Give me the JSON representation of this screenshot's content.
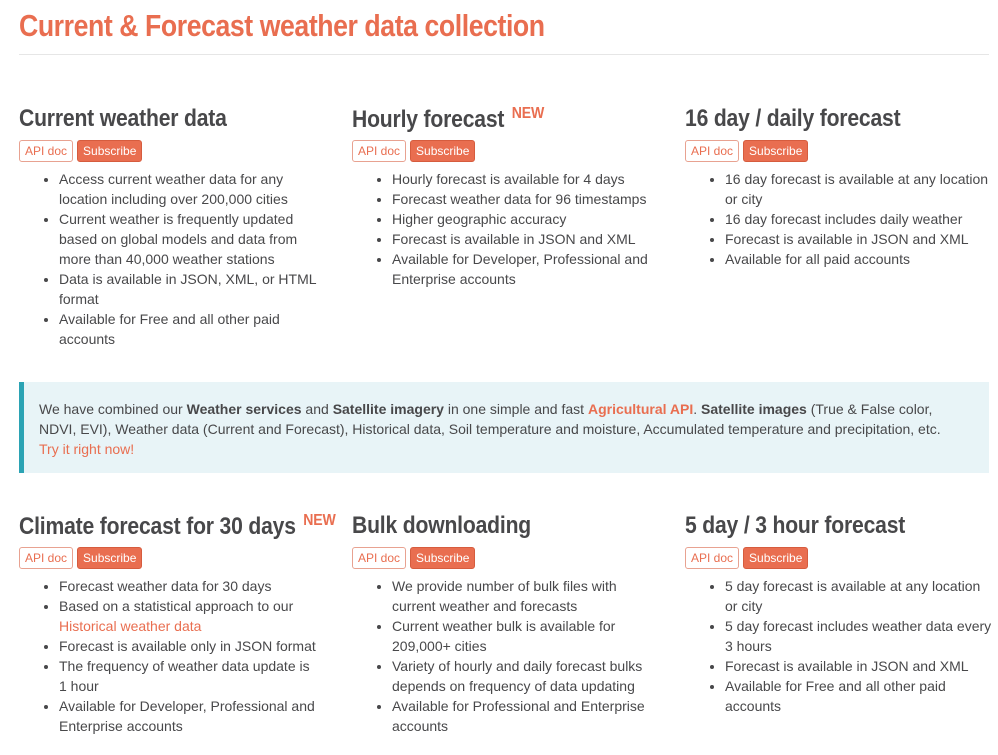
{
  "page": {
    "title": "Current & Forecast weather data collection"
  },
  "buttons": {
    "api_doc": "API doc",
    "subscribe": "Subscribe"
  },
  "cards": [
    {
      "title": "Current weather data",
      "badge": "",
      "items": [
        "Access current weather data for any location including over 200,000 cities",
        "Current weather is frequently updated based on global models and data from more than 40,000 weather stations",
        "Data is available in JSON, XML, or HTML format",
        "Available for Free and all other paid accounts"
      ]
    },
    {
      "title": "Hourly forecast",
      "badge": "NEW",
      "items": [
        "Hourly forecast is available for 4 days",
        "Forecast weather data for 96 timestamps",
        "Higher geographic accuracy",
        "Forecast is available in JSON and XML",
        "Available for Developer, Professional and Enterprise accounts"
      ]
    },
    {
      "title": "16 day / daily forecast",
      "badge": "",
      "items": [
        "16 day forecast is available at any location or city",
        "16 day forecast includes daily weather",
        "Forecast is available in JSON and XML",
        "Available for all paid accounts"
      ]
    },
    {
      "title": "Climate forecast for 30 days",
      "badge": "NEW",
      "items": [
        "Forecast weather data for 30 days",
        "Based on a statistical approach to our",
        "Forecast is available only in JSON format",
        "The frequency of weather data update is 1 hour",
        "Available for Developer, Professional and Enterprise accounts"
      ],
      "item2_link": "Historical weather data"
    },
    {
      "title": "Bulk downloading",
      "badge": "",
      "items": [
        "We provide number of bulk files with current weather and forecasts",
        "Current weather bulk is available for 209,000+ cities",
        "Variety of hourly and daily forecast bulks depends on frequency of data updating",
        "Available for Professional and Enterprise accounts"
      ]
    },
    {
      "title": "5 day / 3 hour forecast",
      "badge": "",
      "items": [
        "5 day forecast is available at any location or city",
        "5 day forecast includes weather data every 3 hours",
        "Forecast is available in JSON and XML",
        "Available for Free and all other paid accounts"
      ]
    }
  ],
  "banner": {
    "t1": "We have combined our ",
    "b1": "Weather services",
    "t2": " and ",
    "b2": "Satellite imagery",
    "t3": " in one simple and fast ",
    "agri_link": "Agricultural API",
    "t4": ". ",
    "b3": "Satellite images",
    "t5": " (True & False color, NDVI, EVI), Weather data (Current and Forecast), Historical data, Soil temperature and moisture, Accumulated temperature and precipitation, etc.",
    "try_link": "Try it right now!"
  },
  "colors": {
    "accent": "#e96e50",
    "text": "#48484a",
    "banner_bg": "#e8f4f7",
    "banner_border": "#2ba3b4"
  }
}
